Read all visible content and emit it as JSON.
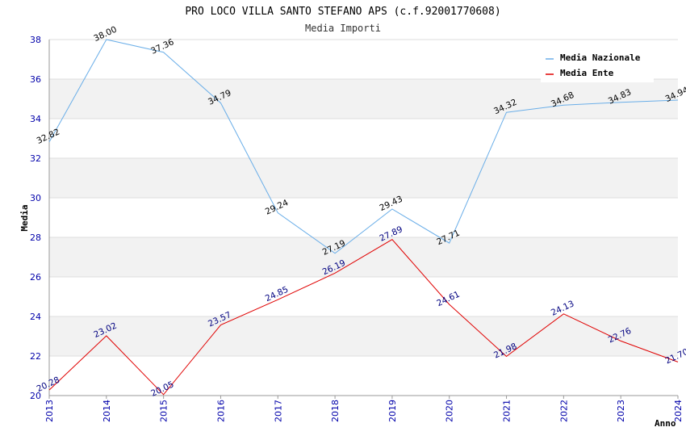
{
  "header": {
    "title": "PRO LOCO VILLA SANTO STEFANO APS (c.f.92001770608)",
    "subtitle": "Media Importi"
  },
  "colors": {
    "nazionale": "#6aaee8",
    "ente": "#e00000",
    "band": "#f2f2f2",
    "grid": "#dddddd",
    "tick_text": "#0000aa"
  },
  "chart_data": {
    "type": "line",
    "title": "PRO LOCO VILLA SANTO STEFANO APS (c.f.92001770608)",
    "subtitle": "Media Importi",
    "xlabel": "Anno",
    "ylabel": "Media",
    "ylim": [
      20,
      38
    ],
    "yticks": [
      "20",
      "22",
      "24",
      "26",
      "28",
      "30",
      "32",
      "34",
      "36",
      "38"
    ],
    "categories": [
      "2013",
      "2014",
      "2015",
      "2016",
      "2017",
      "2018",
      "2019",
      "2020",
      "2021",
      "2022",
      "2023",
      "2024"
    ],
    "legend_position": "top-right",
    "series": [
      {
        "name": "Media Nazionale",
        "values": [
          32.82,
          38.0,
          37.36,
          34.79,
          29.24,
          27.19,
          29.43,
          27.71,
          34.32,
          34.68,
          34.83,
          34.94
        ],
        "labels": [
          "32.82",
          "38.00",
          "37.36",
          "34.79",
          "29.24",
          "27.19",
          "29.43",
          "27.71",
          "34.32",
          "34.68",
          "34.83",
          "34.94"
        ]
      },
      {
        "name": "Media Ente",
        "values": [
          20.28,
          23.02,
          20.05,
          23.57,
          24.85,
          26.19,
          27.89,
          24.61,
          21.98,
          24.13,
          22.76,
          21.7
        ],
        "labels": [
          "20.28",
          "23.02",
          "20.05",
          "23.57",
          "24.85",
          "26.19",
          "27.89",
          "24.61",
          "21.98",
          "24.13",
          "22.76",
          "21.70"
        ]
      }
    ]
  }
}
